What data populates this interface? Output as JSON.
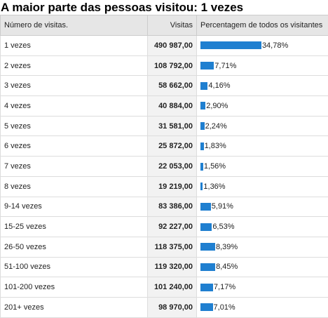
{
  "title": "A maior parte das pessoas visitou: 1 vezes",
  "table": {
    "headers": [
      "Número de visitas.",
      "Visitas",
      "Percentagem de todos os visitantes"
    ],
    "rows": [
      {
        "label": "1 vezes",
        "visits": "490 987,00",
        "percent": {
          "value": 34.78,
          "label": "34,78%"
        }
      },
      {
        "label": "2 vezes",
        "visits": "108 792,00",
        "percent": {
          "value": 7.71,
          "label": "7,71%"
        }
      },
      {
        "label": "3 vezes",
        "visits": "58 662,00",
        "percent": {
          "value": 4.16,
          "label": "4,16%"
        }
      },
      {
        "label": "4 vezes",
        "visits": "40 884,00",
        "percent": {
          "value": 2.9,
          "label": "2,90%"
        }
      },
      {
        "label": "5 vezes",
        "visits": "31 581,00",
        "percent": {
          "value": 2.24,
          "label": "2,24%"
        }
      },
      {
        "label": "6 vezes",
        "visits": "25 872,00",
        "percent": {
          "value": 1.83,
          "label": "1,83%"
        }
      },
      {
        "label": "7 vezes",
        "visits": "22 053,00",
        "percent": {
          "value": 1.56,
          "label": "1,56%"
        }
      },
      {
        "label": "8 vezes",
        "visits": "19 219,00",
        "percent": {
          "value": 1.36,
          "label": "1,36%"
        }
      },
      {
        "label": "9-14 vezes",
        "visits": "83 386,00",
        "percent": {
          "value": 5.91,
          "label": "5,91%"
        }
      },
      {
        "label": "15-25 vezes",
        "visits": "92 227,00",
        "percent": {
          "value": 6.53,
          "label": "6,53%"
        }
      },
      {
        "label": "26-50 vezes",
        "visits": "118 375,00",
        "percent": {
          "value": 8.39,
          "label": "8,39%"
        }
      },
      {
        "label": "51-100 vezes",
        "visits": "119 320,00",
        "percent": {
          "value": 8.45,
          "label": "8,45%"
        }
      },
      {
        "label": "101-200 vezes",
        "visits": "101 240,00",
        "percent": {
          "value": 7.17,
          "label": "7,17%"
        }
      },
      {
        "label": "201+ vezes",
        "visits": "98 970,00",
        "percent": {
          "value": 7.01,
          "label": "7,01%"
        }
      }
    ]
  }
}
